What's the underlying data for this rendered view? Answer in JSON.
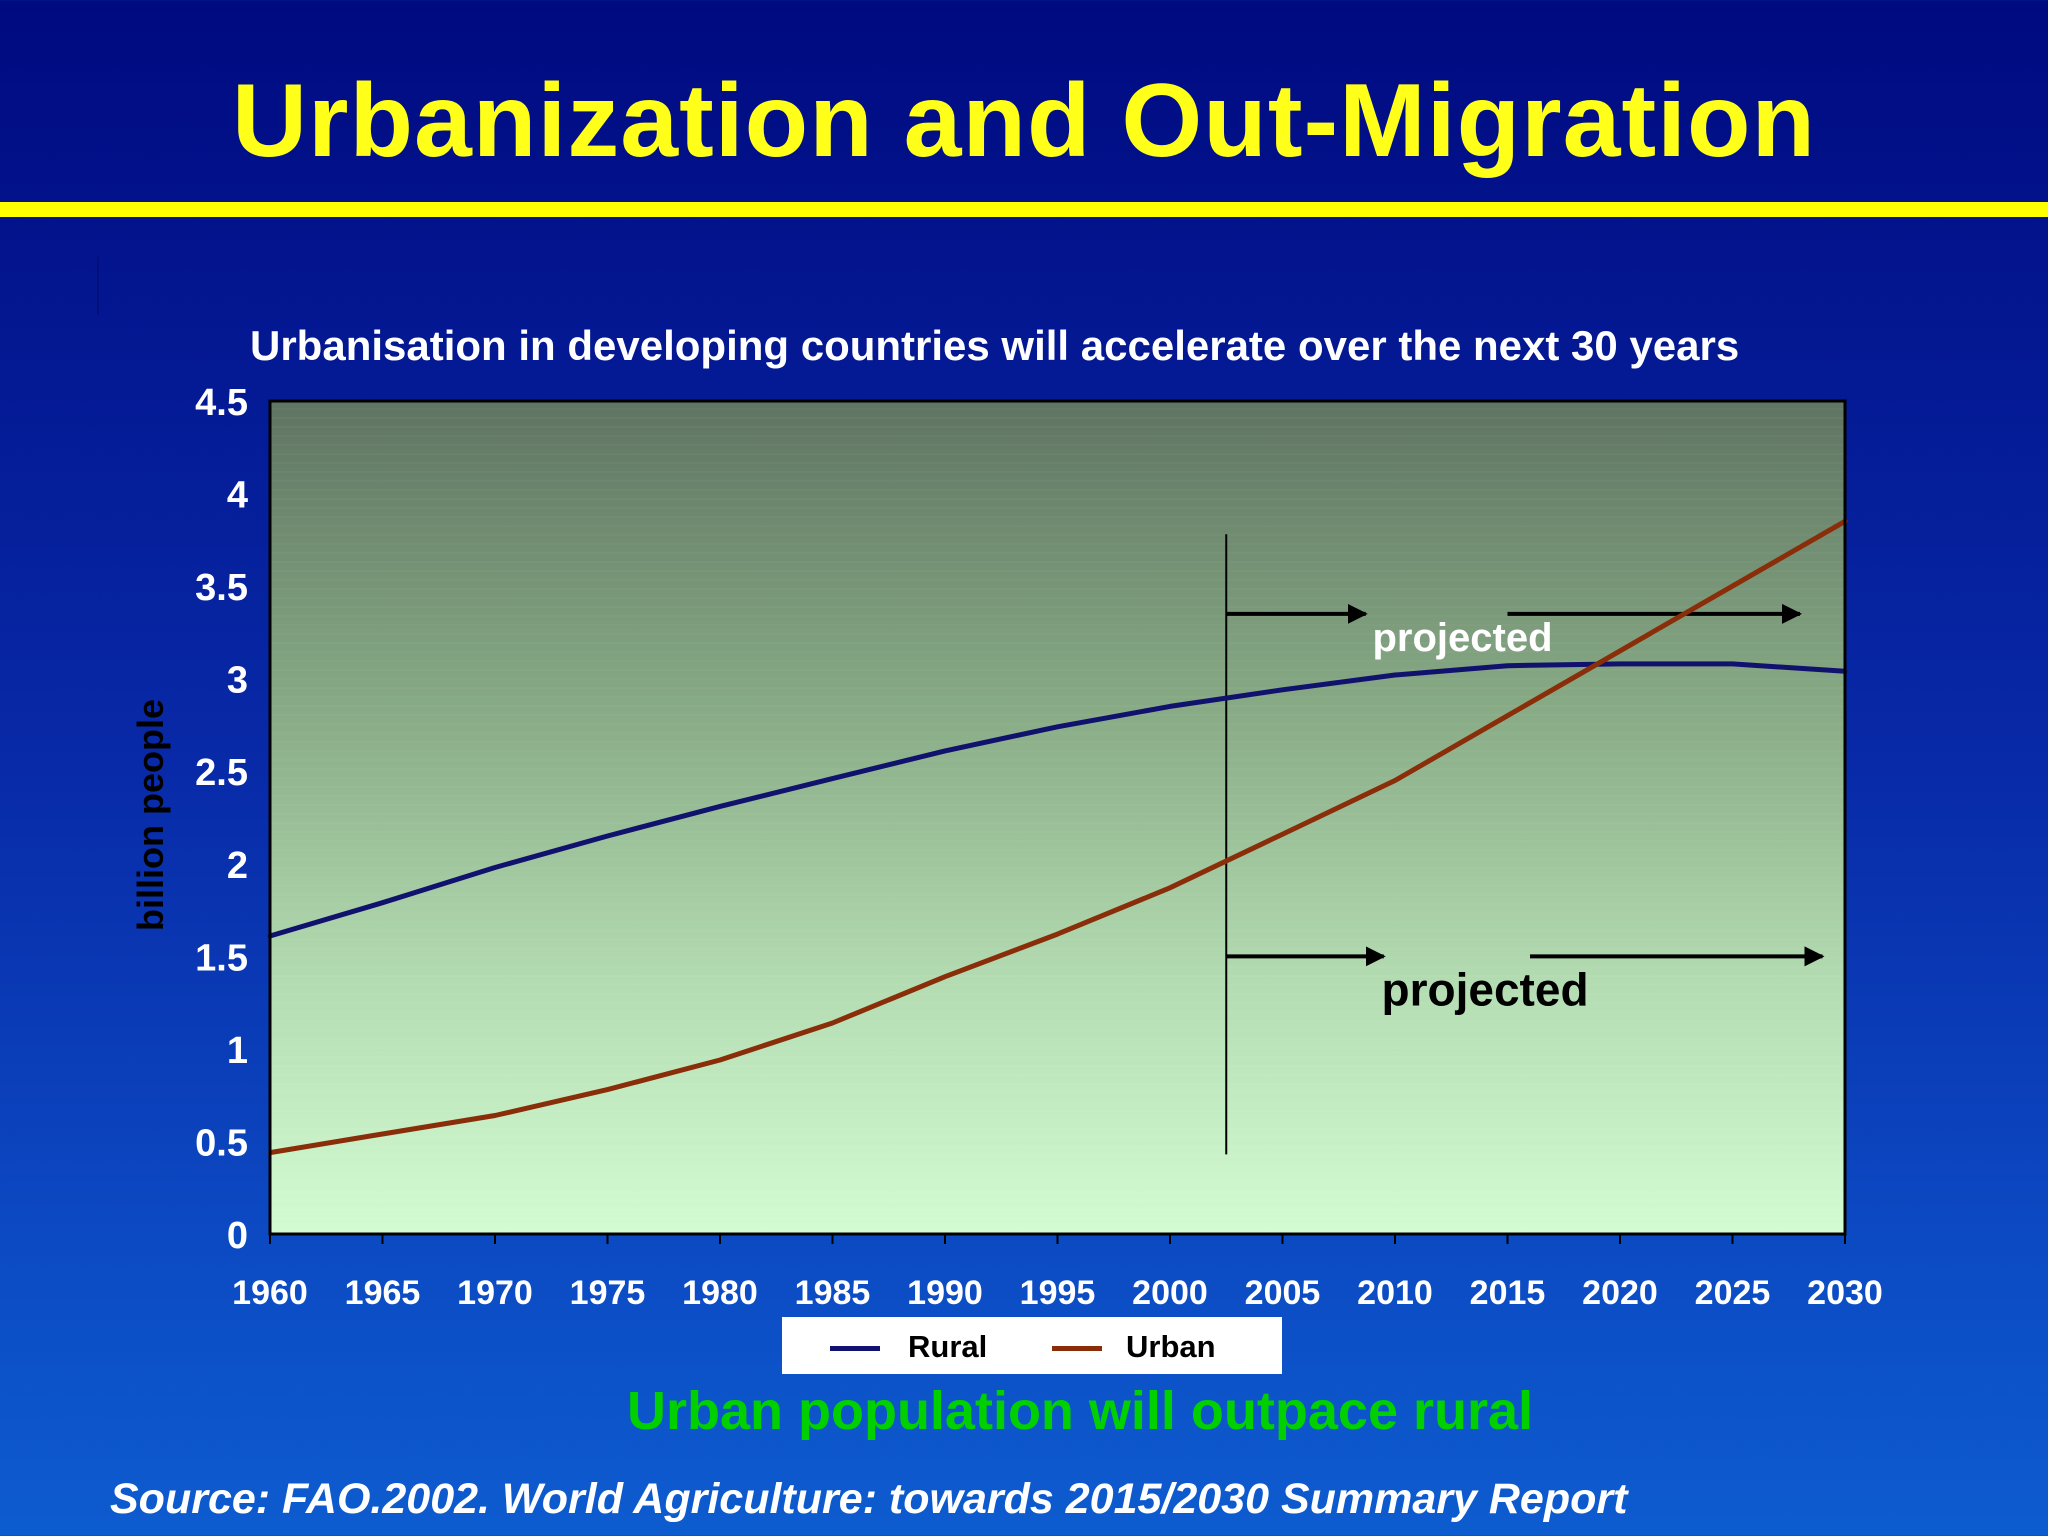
{
  "slide": {
    "title": "Urbanization and Out-Migration",
    "conclusion": "Urban population will outpace rural",
    "source": "Source: FAO.2002. World Agriculture: towards 2015/2030 Summary Report"
  },
  "colors": {
    "title": "#ffff1a",
    "rural": "#10126e",
    "urban": "#8a2e0a",
    "conclusion": "#00d000"
  },
  "chart_data": {
    "type": "line",
    "title": "Urbanisation in developing countries will accelerate over the next 30 years",
    "xlabel": "",
    "ylabel": "billion people",
    "xlim": [
      1960,
      2030
    ],
    "ylim": [
      0,
      4.5
    ],
    "x_ticks": [
      "1960",
      "1965",
      "1970",
      "1975",
      "1980",
      "1985",
      "1990",
      "1995",
      "2000",
      "2005",
      "2010",
      "2015",
      "2020",
      "2025",
      "2030"
    ],
    "y_ticks": [
      "0",
      "0.5",
      "1",
      "1.5",
      "2",
      "2.5",
      "3",
      "3.5",
      "4",
      "4.5"
    ],
    "legend_position": "bottom",
    "grid": false,
    "series": [
      {
        "name": "Rural",
        "color": "#10126e",
        "x": [
          1960,
          1965,
          1970,
          1975,
          1980,
          1985,
          1990,
          1995,
          2000,
          2005,
          2010,
          2015,
          2020,
          2025,
          2030
        ],
        "y": [
          1.61,
          1.79,
          1.98,
          2.15,
          2.31,
          2.46,
          2.61,
          2.74,
          2.85,
          2.94,
          3.02,
          3.07,
          3.08,
          3.08,
          3.04
        ]
      },
      {
        "name": "Urban",
        "color": "#8a2e0a",
        "x": [
          1960,
          1965,
          1970,
          1975,
          1980,
          1985,
          1990,
          1995,
          2000,
          2005,
          2010,
          2015,
          2020,
          2025,
          2030
        ],
        "y": [
          0.44,
          0.54,
          0.64,
          0.78,
          0.94,
          1.14,
          1.39,
          1.62,
          1.87,
          2.16,
          2.45,
          2.8,
          3.15,
          3.5,
          3.85
        ]
      }
    ],
    "annotations": {
      "divider_year": 2002.5,
      "projected_label": "projected",
      "rural_projection": {
        "label_y": 3.22,
        "arrow_y": 3.35,
        "arrow_start_x": 2002.5,
        "arrow_end_x": 2028
      },
      "urban_projection": {
        "label_y": 1.32,
        "arrow_y": 1.5,
        "arrow_start_x": 2002.5,
        "arrow_end_x": 2029
      }
    }
  }
}
